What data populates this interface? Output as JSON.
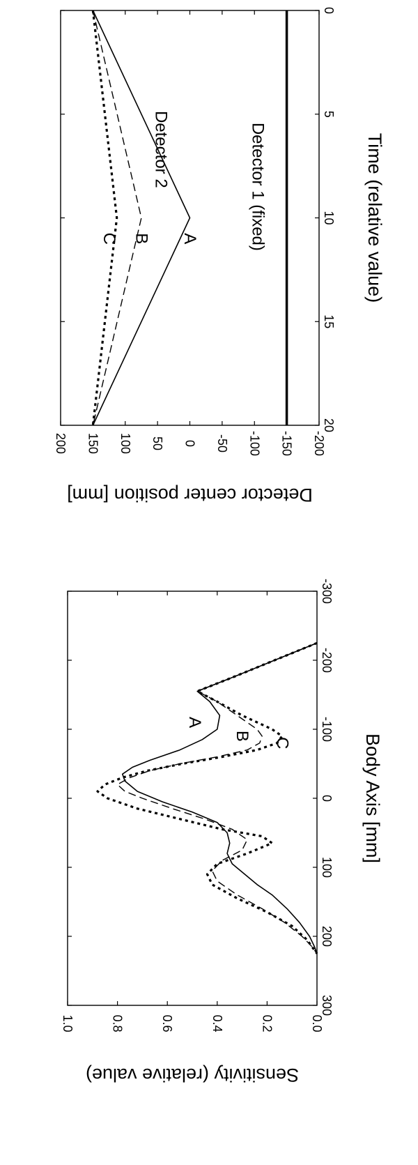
{
  "chart_data": [
    {
      "type": "line",
      "title": "",
      "xlabel": "Body Axis [mm]",
      "ylabel": "Sensitivity (relative value)",
      "xlim": [
        -300,
        300
      ],
      "ylim": [
        0.0,
        1.0
      ],
      "xticks": [
        -300,
        -200,
        -100,
        0,
        100,
        200,
        300
      ],
      "yticks": [
        0.0,
        0.2,
        0.4,
        0.6,
        0.8,
        1.0
      ],
      "xtick_labels": [
        "-300",
        "-200",
        "-100",
        "0",
        "100",
        "200",
        "300"
      ],
      "ytick_labels": [
        "0.0",
        "0.2",
        "0.4",
        "0.6",
        "0.8",
        "1.0"
      ],
      "series": [
        {
          "name": "A",
          "style": "solid",
          "x": [
            -225,
            -200,
            -175,
            -155,
            -140,
            -120,
            -100,
            -85,
            -70,
            -55,
            -45,
            -35,
            -25,
            -10,
            5,
            20,
            35,
            50,
            65,
            80,
            95,
            110,
            125,
            140,
            160,
            180,
            200,
            215,
            225
          ],
          "y": [
            0.0,
            0.17,
            0.34,
            0.48,
            0.43,
            0.39,
            0.4,
            0.46,
            0.55,
            0.67,
            0.74,
            0.78,
            0.77,
            0.72,
            0.62,
            0.5,
            0.4,
            0.36,
            0.35,
            0.36,
            0.34,
            0.29,
            0.24,
            0.18,
            0.12,
            0.07,
            0.03,
            0.01,
            0.0
          ]
        },
        {
          "name": "B",
          "style": "dashed",
          "x": [
            -225,
            -200,
            -175,
            -155,
            -140,
            -120,
            -100,
            -90,
            -80,
            -70,
            -60,
            -50,
            -40,
            -30,
            -20,
            -10,
            0,
            15,
            30,
            45,
            60,
            75,
            90,
            105,
            120,
            140,
            160,
            180,
            200,
            215,
            225
          ],
          "y": [
            0.0,
            0.17,
            0.34,
            0.48,
            0.4,
            0.32,
            0.24,
            0.22,
            0.23,
            0.28,
            0.4,
            0.55,
            0.67,
            0.75,
            0.8,
            0.77,
            0.7,
            0.58,
            0.45,
            0.34,
            0.28,
            0.3,
            0.38,
            0.42,
            0.4,
            0.32,
            0.22,
            0.13,
            0.06,
            0.02,
            0.0
          ]
        },
        {
          "name": "C",
          "style": "dotted",
          "x": [
            -225,
            -200,
            -175,
            -155,
            -140,
            -120,
            -100,
            -90,
            -80,
            -70,
            -60,
            -50,
            -40,
            -30,
            -20,
            -10,
            0,
            15,
            30,
            45,
            55,
            65,
            80,
            95,
            110,
            125,
            145,
            165,
            185,
            205,
            220,
            225
          ],
          "y": [
            0.0,
            0.17,
            0.34,
            0.48,
            0.4,
            0.3,
            0.18,
            0.14,
            0.16,
            0.24,
            0.38,
            0.54,
            0.68,
            0.78,
            0.85,
            0.88,
            0.84,
            0.72,
            0.55,
            0.38,
            0.22,
            0.18,
            0.28,
            0.4,
            0.44,
            0.42,
            0.32,
            0.2,
            0.1,
            0.04,
            0.01,
            0.0
          ]
        }
      ],
      "annotations": [
        {
          "text": "A",
          "x": -110,
          "y": 0.49
        },
        {
          "text": "B",
          "x": -90,
          "y": 0.3
        },
        {
          "text": "C",
          "x": -80,
          "y": 0.14
        }
      ]
    },
    {
      "type": "line",
      "title": "",
      "xlabel": "Time (relative value)",
      "ylabel": "Detector center position [mm]",
      "xlim": [
        0,
        20
      ],
      "ylim": [
        -200,
        200
      ],
      "xticks": [
        0,
        5,
        10,
        15,
        20
      ],
      "yticks": [
        -200,
        -150,
        -100,
        -50,
        0,
        50,
        100,
        150,
        200
      ],
      "xtick_labels": [
        "0",
        "5",
        "10",
        "15",
        "20"
      ],
      "ytick_labels": [
        "-200",
        "-150",
        "-100",
        "-50",
        "0",
        "50",
        "100",
        "150",
        "200"
      ],
      "series": [
        {
          "name": "A",
          "style": "solid",
          "x": [
            0,
            10,
            20
          ],
          "y": [
            150,
            0,
            150
          ]
        },
        {
          "name": "B",
          "style": "dashed",
          "x": [
            0,
            10,
            20
          ],
          "y": [
            150,
            75,
            150
          ]
        },
        {
          "name": "C",
          "style": "dotted",
          "x": [
            0,
            10,
            20
          ],
          "y": [
            150,
            113,
            150
          ]
        },
        {
          "name": "Detector 1 (fixed)",
          "style": "thick",
          "x": [
            0,
            20
          ],
          "y": [
            -150,
            -150
          ]
        }
      ],
      "annotations": [
        {
          "text": "A",
          "x": 11,
          "y": 0
        },
        {
          "text": "B",
          "x": 11,
          "y": 75
        },
        {
          "text": "C",
          "x": 11,
          "y": 125
        },
        {
          "text": "Detector 2",
          "x": 6.7,
          "y": 45
        },
        {
          "text": "Detector 1 (fixed)",
          "x": 8.5,
          "y": -105
        }
      ]
    }
  ]
}
